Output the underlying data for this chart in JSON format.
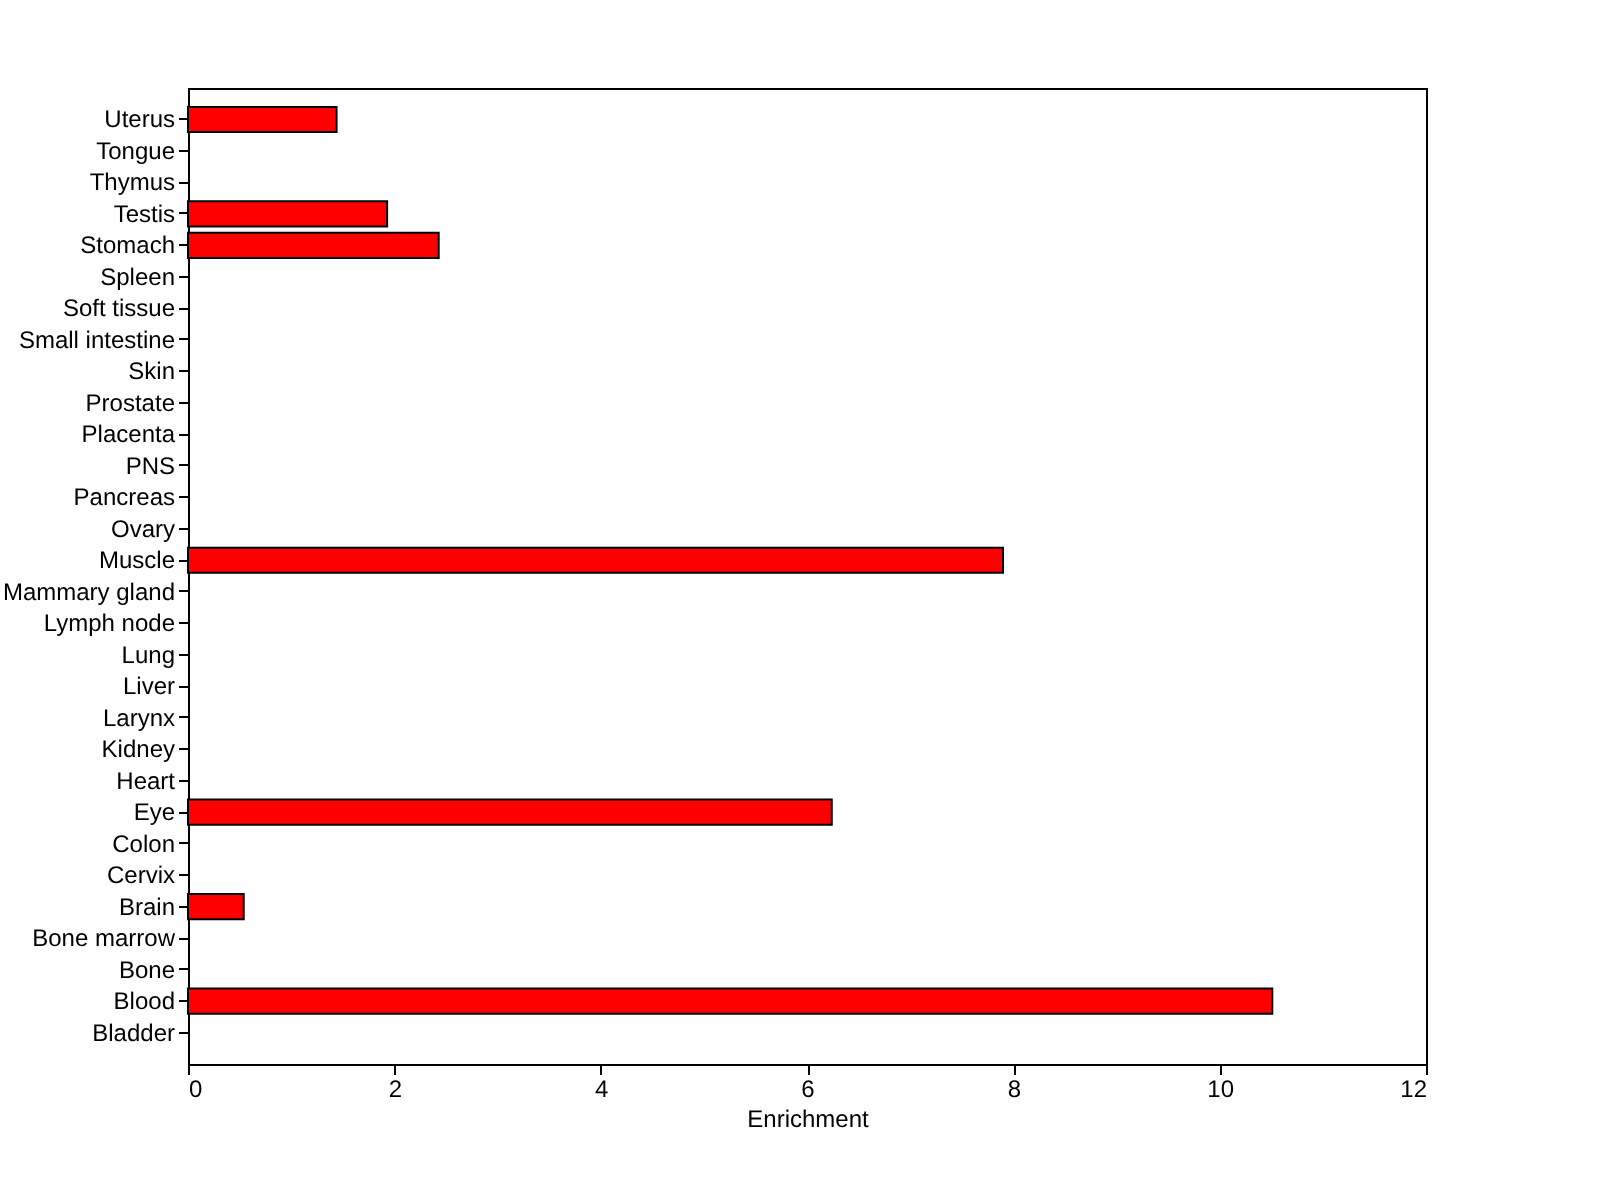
{
  "chart_data": {
    "type": "bar",
    "orientation": "horizontal",
    "xlabel": "Enrichment",
    "categories": [
      "Uterus",
      "Tongue",
      "Thymus",
      "Testis",
      "Stomach",
      "Spleen",
      "Soft tissue",
      "Small intestine",
      "Skin",
      "Prostate",
      "Placenta",
      "PNS",
      "Pancreas",
      "Ovary",
      "Muscle",
      "Mammary gland",
      "Lymph node",
      "Lung",
      "Liver",
      "Larynx",
      "Kidney",
      "Heart",
      "Eye",
      "Colon",
      "Cervix",
      "Brain",
      "Bone marrow",
      "Bone",
      "Blood",
      "Bladder"
    ],
    "values": [
      1.44,
      0,
      0,
      1.93,
      2.43,
      0,
      0,
      0,
      0,
      0,
      0,
      0,
      0,
      0,
      7.9,
      0,
      0,
      0,
      0,
      0,
      0,
      0,
      6.24,
      0,
      0,
      0.54,
      0,
      0,
      10.51,
      0
    ],
    "color": "#ff0000",
    "xlim": [
      0,
      12
    ],
    "xticks": [
      0,
      2,
      4,
      6,
      8,
      10,
      12
    ],
    "grid": false
  }
}
